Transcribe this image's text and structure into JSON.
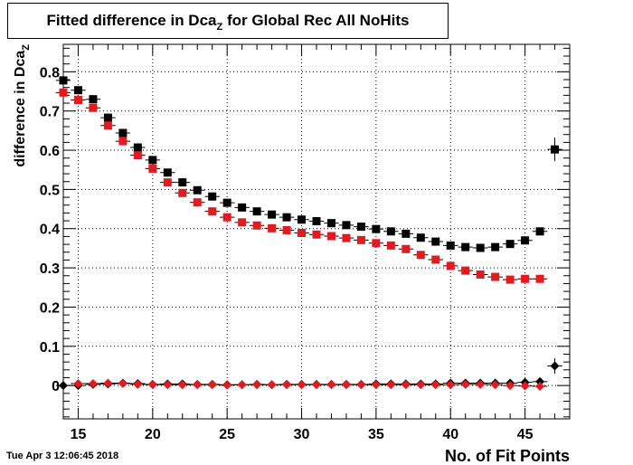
{
  "title": {
    "main": "Fitted difference in Dca",
    "sub": "Z",
    "rest": " for Global Rec All NoHits"
  },
  "footer": {
    "date": "Tue Apr  3 12:06:45 2018"
  },
  "colors": {
    "black_series": "#000000",
    "red_series": "#e8191c",
    "grid": "#000000"
  },
  "chart_data": {
    "type": "scatter",
    "xlabel": "No. of Fit Points",
    "ylabel": "difference in Dca",
    "ylabel_sub": "Z",
    "xlim": [
      14,
      48
    ],
    "ylim": [
      -0.085,
      0.87
    ],
    "xticks": [
      15,
      20,
      25,
      30,
      35,
      40,
      45
    ],
    "yticks": [
      0,
      0.1,
      0.2,
      0.3,
      0.4,
      0.5,
      0.6,
      0.7,
      0.8
    ],
    "ytick_labels": [
      "0",
      "0.1",
      "0.2",
      "0.3",
      "0.4",
      "0.5",
      "0.6",
      "0.7",
      "0.8"
    ],
    "grid": true,
    "series": [
      {
        "marker": "square",
        "color": "#000000",
        "x": [
          14,
          15,
          16,
          17,
          18,
          19,
          20,
          21,
          22,
          23,
          24,
          25,
          26,
          27,
          28,
          29,
          30,
          31,
          32,
          33,
          34,
          35,
          36,
          37,
          38,
          39,
          40,
          41,
          42,
          43,
          44,
          45,
          46,
          47
        ],
        "y": [
          0.778,
          0.753,
          0.73,
          0.683,
          0.644,
          0.607,
          0.575,
          0.543,
          0.518,
          0.498,
          0.482,
          0.466,
          0.454,
          0.444,
          0.436,
          0.429,
          0.423,
          0.419,
          0.414,
          0.409,
          0.405,
          0.399,
          0.393,
          0.387,
          0.377,
          0.367,
          0.357,
          0.353,
          0.351,
          0.353,
          0.361,
          0.37,
          0.393,
          0.602
        ],
        "yerr": [
          0,
          0,
          0,
          0,
          0,
          0,
          0,
          0,
          0,
          0,
          0,
          0,
          0,
          0,
          0,
          0,
          0,
          0,
          0,
          0,
          0,
          0,
          0,
          0,
          0,
          0,
          0,
          0,
          0,
          0,
          0,
          0,
          0,
          0.03
        ]
      },
      {
        "marker": "square",
        "color": "#e8191c",
        "x": [
          14,
          15,
          16,
          17,
          18,
          19,
          20,
          21,
          22,
          23,
          24,
          25,
          26,
          27,
          28,
          29,
          30,
          31,
          32,
          33,
          34,
          35,
          36,
          37,
          38,
          39,
          40,
          41,
          42,
          43,
          44,
          45,
          46
        ],
        "y": [
          0.747,
          0.728,
          0.708,
          0.663,
          0.623,
          0.587,
          0.553,
          0.518,
          0.491,
          0.467,
          0.444,
          0.429,
          0.416,
          0.408,
          0.401,
          0.396,
          0.389,
          0.385,
          0.381,
          0.376,
          0.371,
          0.363,
          0.357,
          0.348,
          0.333,
          0.321,
          0.305,
          0.293,
          0.283,
          0.277,
          0.27,
          0.272,
          0.272
        ],
        "yerr": []
      },
      {
        "marker": "diamond",
        "color": "#000000",
        "x": [
          14,
          15,
          16,
          17,
          18,
          19,
          20,
          21,
          22,
          23,
          24,
          25,
          26,
          27,
          28,
          29,
          30,
          31,
          32,
          33,
          34,
          35,
          36,
          37,
          38,
          39,
          40,
          41,
          42,
          43,
          44,
          45,
          46,
          47
        ],
        "y": [
          0.0,
          0.0,
          0.003,
          0.004,
          0.006,
          0.005,
          0.003,
          0.004,
          0.004,
          0.003,
          0.003,
          0.002,
          0.002,
          0.003,
          0.002,
          0.003,
          0.003,
          0.003,
          0.003,
          0.003,
          0.003,
          0.004,
          0.004,
          0.004,
          0.004,
          0.004,
          0.006,
          0.006,
          0.006,
          0.006,
          0.006,
          0.008,
          0.01,
          0.05
        ],
        "yerr": [
          0,
          0,
          0,
          0,
          0,
          0,
          0,
          0,
          0,
          0,
          0,
          0,
          0,
          0,
          0,
          0,
          0,
          0,
          0,
          0,
          0,
          0,
          0,
          0,
          0,
          0,
          0,
          0,
          0,
          0,
          0,
          0,
          0,
          0.02
        ]
      },
      {
        "marker": "diamond",
        "color": "#e8191c",
        "x": [
          15,
          16,
          17,
          18,
          19,
          20,
          21,
          22,
          23,
          24,
          25,
          26,
          27,
          28,
          29,
          30,
          31,
          32,
          33,
          34,
          35,
          36,
          37,
          38,
          39,
          40,
          41,
          42,
          43,
          44,
          45,
          46
        ],
        "y": [
          0.005,
          0.005,
          0.006,
          0.005,
          0.003,
          0.002,
          0.002,
          0.002,
          0.002,
          0.002,
          0.001,
          0.002,
          0.002,
          0.002,
          0.002,
          0.002,
          0.002,
          0.002,
          0.002,
          0.002,
          0.002,
          0.002,
          0.002,
          0.002,
          0.002,
          0.002,
          0.003,
          0.003,
          0.002,
          0.0,
          -0.001,
          -0.002
        ],
        "yerr": []
      }
    ]
  }
}
